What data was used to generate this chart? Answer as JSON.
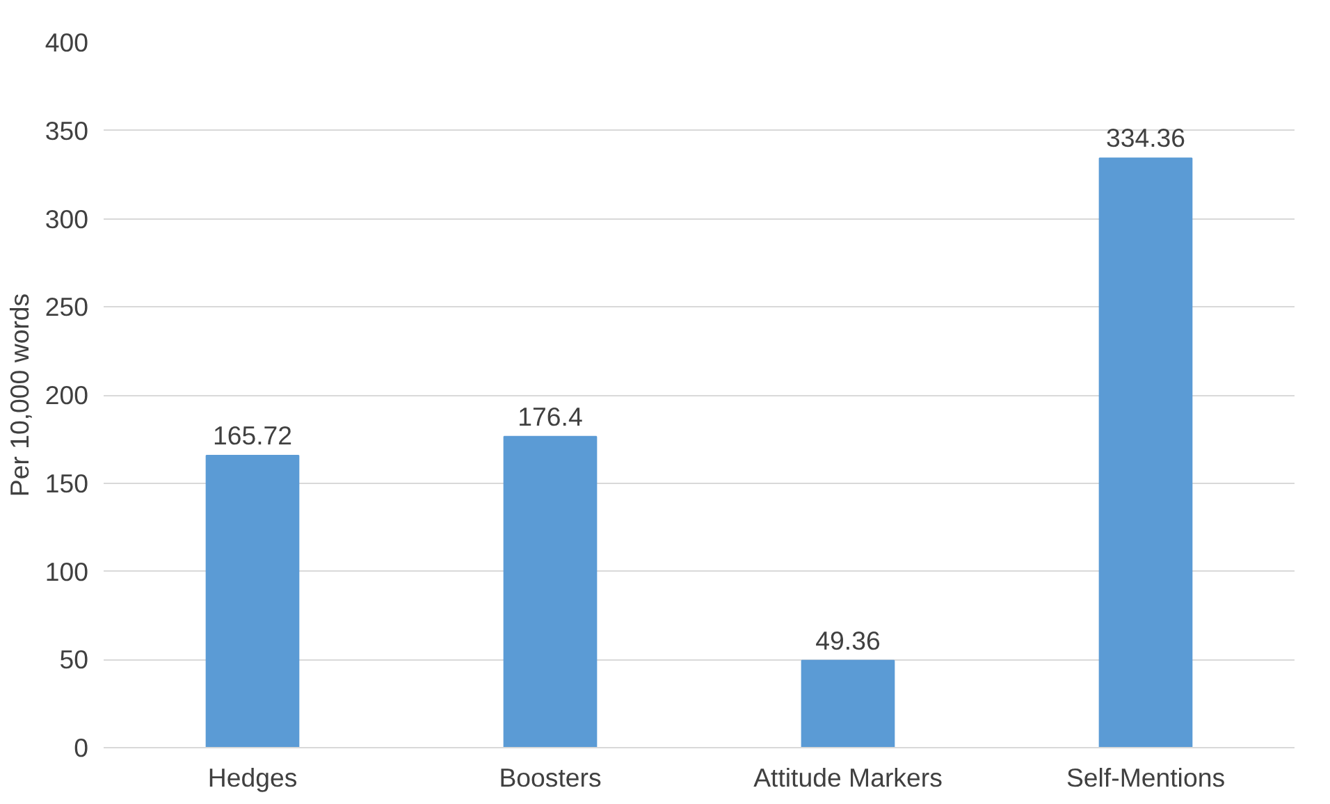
{
  "chart_data": {
    "type": "bar",
    "ylabel": "Per 10,000 words",
    "categories": [
      "Hedges",
      "Boosters",
      "Attitude Markers",
      "Self-Mentions"
    ],
    "values": [
      165.72,
      176.4,
      49.36,
      334.36
    ],
    "color": "#5b9bd5",
    "ylim": [
      0,
      400
    ],
    "yticks": [
      0,
      50,
      100,
      150,
      200,
      250,
      300,
      350,
      400
    ],
    "grid": "y",
    "data_labels": true
  }
}
